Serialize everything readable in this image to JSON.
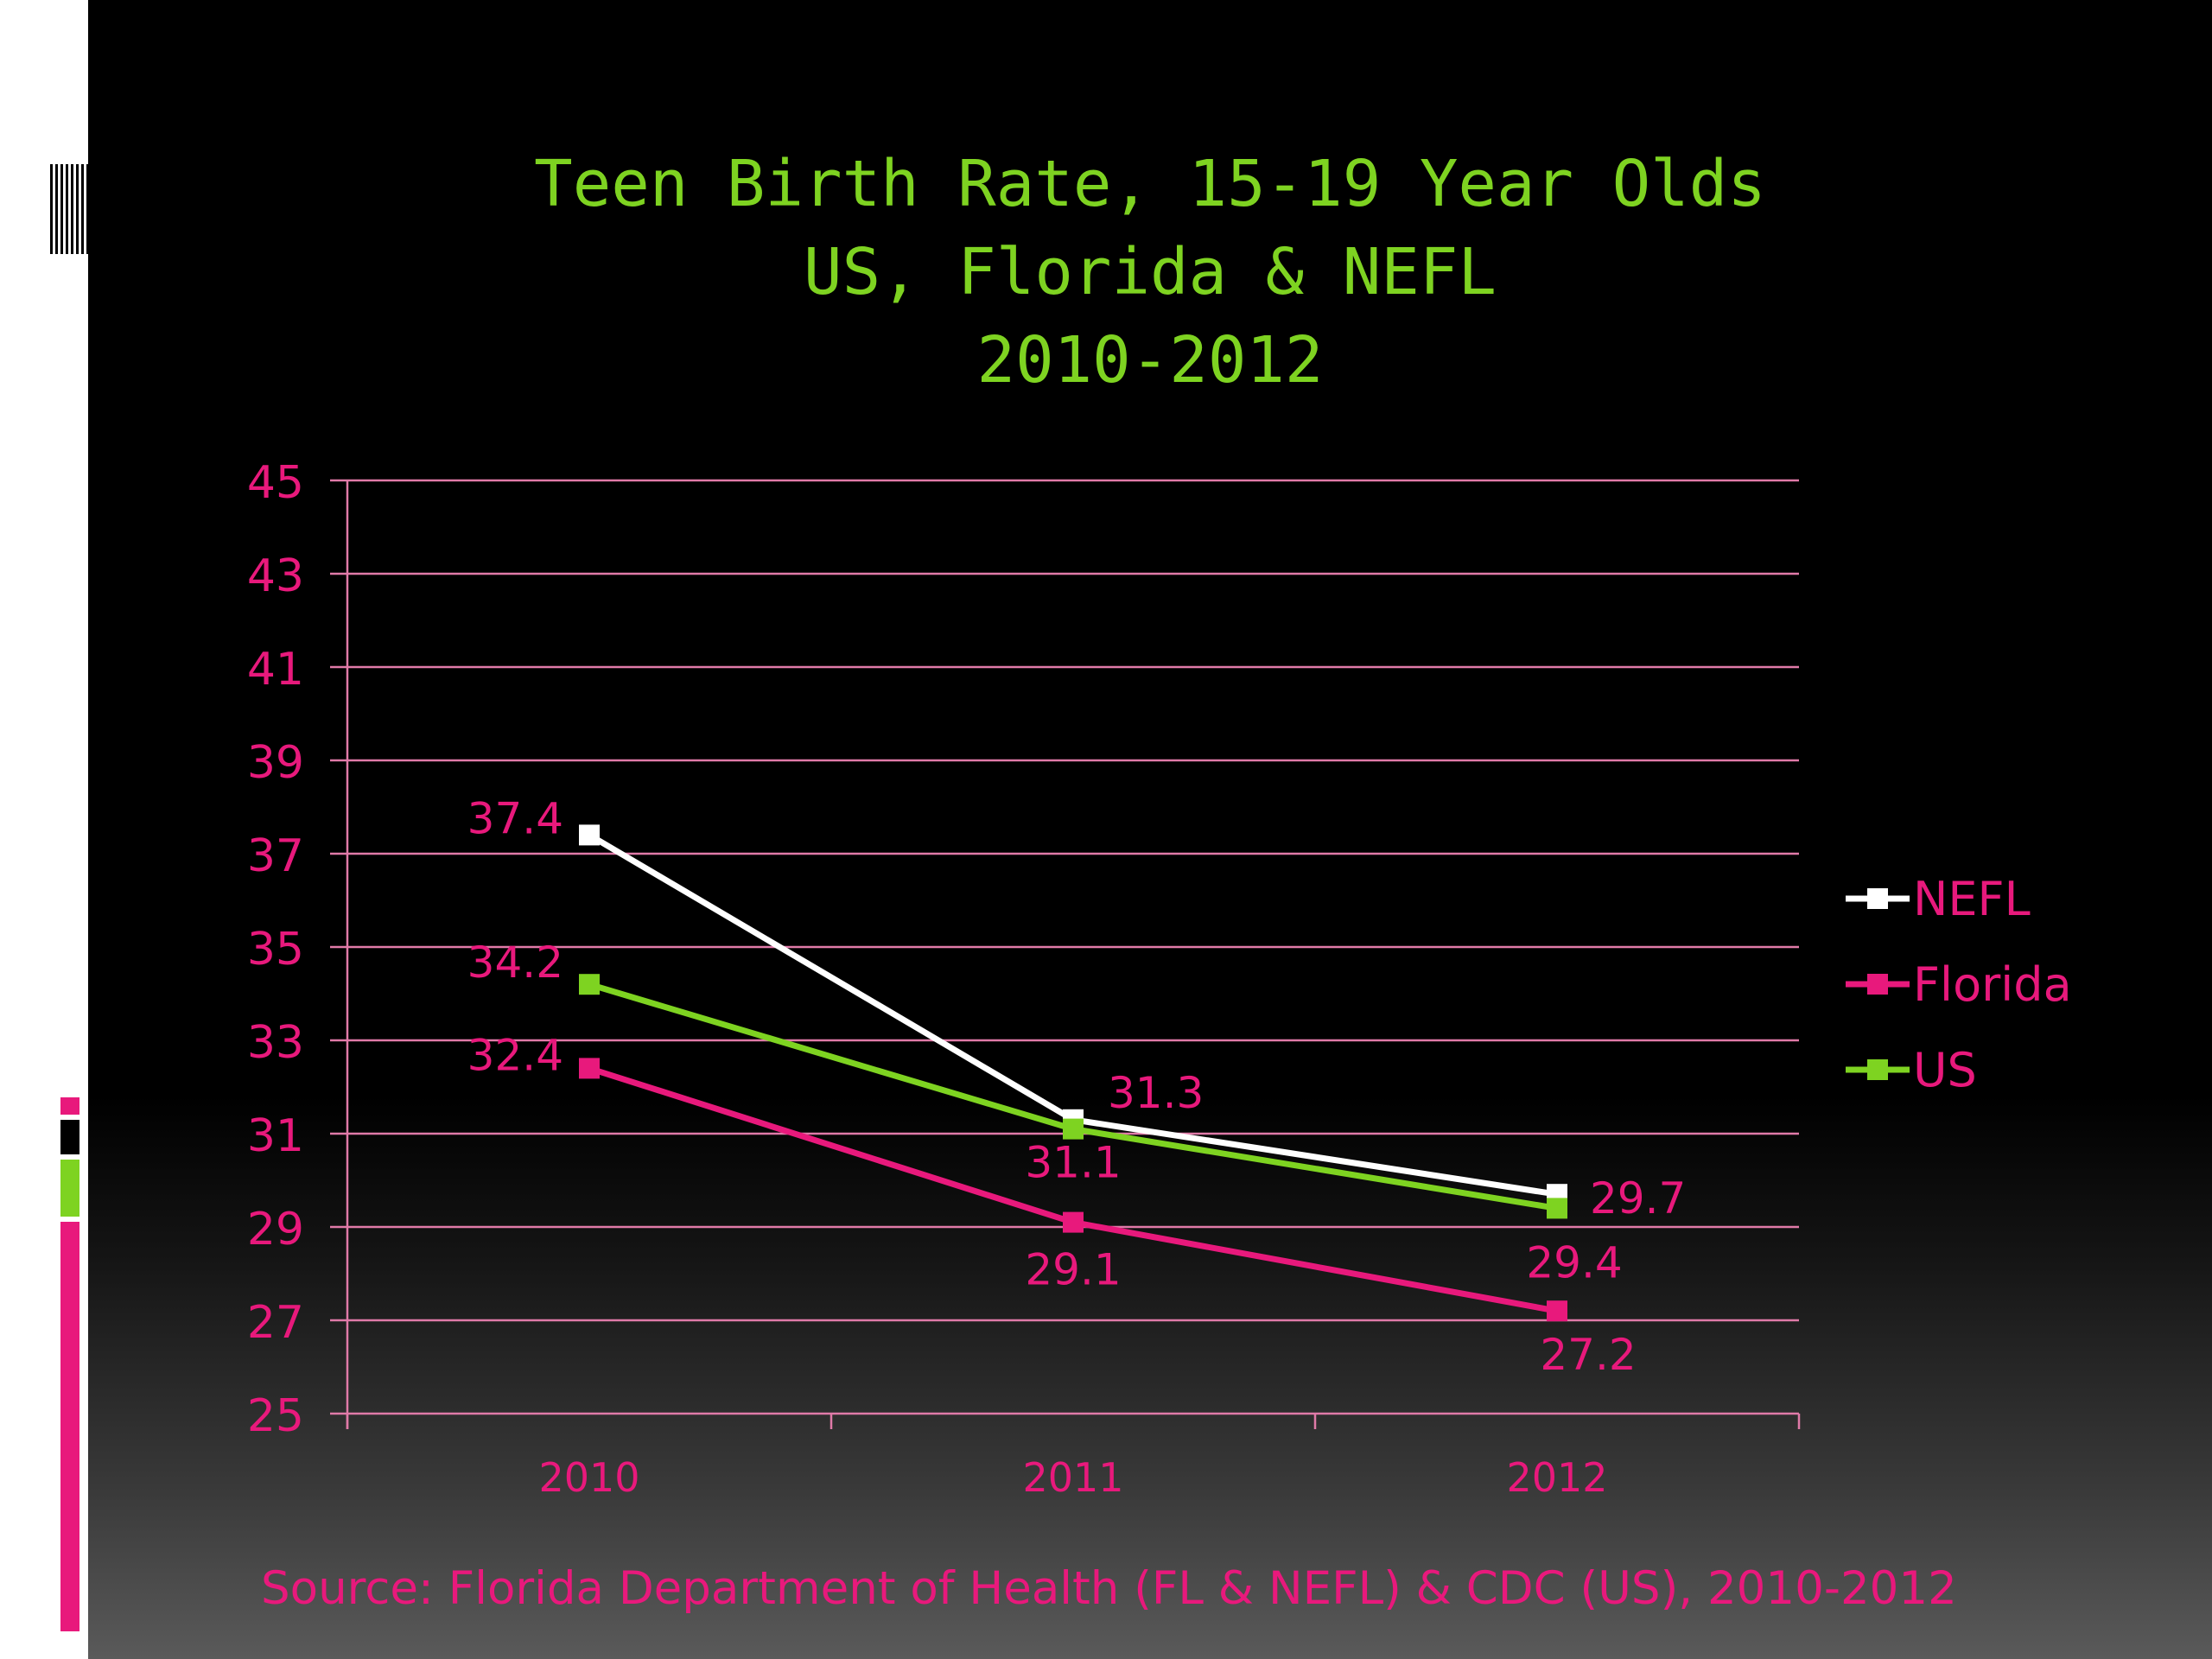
{
  "chart_data": {
    "type": "line",
    "title_lines": [
      "Teen Birth Rate, 15-19 Year Olds",
      "US, Florida & NEFL",
      "2010-2012"
    ],
    "categories": [
      "2010",
      "2011",
      "2012"
    ],
    "ylim": [
      25,
      45
    ],
    "yticks": [
      25,
      27,
      29,
      31,
      33,
      35,
      37,
      39,
      41,
      43,
      45
    ],
    "grid": true,
    "legend_position": "right",
    "series": [
      {
        "name": "NEFL",
        "color": "#ffffff",
        "values": [
          37.4,
          31.3,
          29.7
        ],
        "labels": [
          "37.4",
          "31.3",
          "29.7"
        ]
      },
      {
        "name": "Florida",
        "color": "#e8197c",
        "values": [
          32.4,
          29.1,
          27.2
        ],
        "labels": [
          "32.4",
          "29.1",
          "27.2"
        ]
      },
      {
        "name": "US",
        "color": "#7ed321",
        "values": [
          34.2,
          31.1,
          29.4
        ],
        "labels": [
          "34.2",
          "31.1",
          "29.4"
        ]
      }
    ],
    "axis_color": "#e8197c",
    "gridline_color": "#e07aa8"
  },
  "source_text": "Source: Florida Department of Health (FL & NEFL) & CDC (US), 2010-2012",
  "colors": {
    "title": "#7ed321",
    "accent_pink": "#e8197c",
    "accent_green": "#7ed321"
  }
}
